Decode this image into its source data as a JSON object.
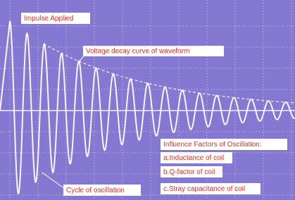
{
  "annotations": {
    "impulse": "Impulse Applied",
    "decay": "Voltage decay curve of waveform",
    "cycle": "Cycle of oscillation"
  },
  "factors": {
    "title": "Influence Factors of Oscillation:",
    "items": [
      "a.Inductance of coil",
      "b.Q-factor of coil",
      "c.Stray capacitance of coil"
    ]
  }
}
